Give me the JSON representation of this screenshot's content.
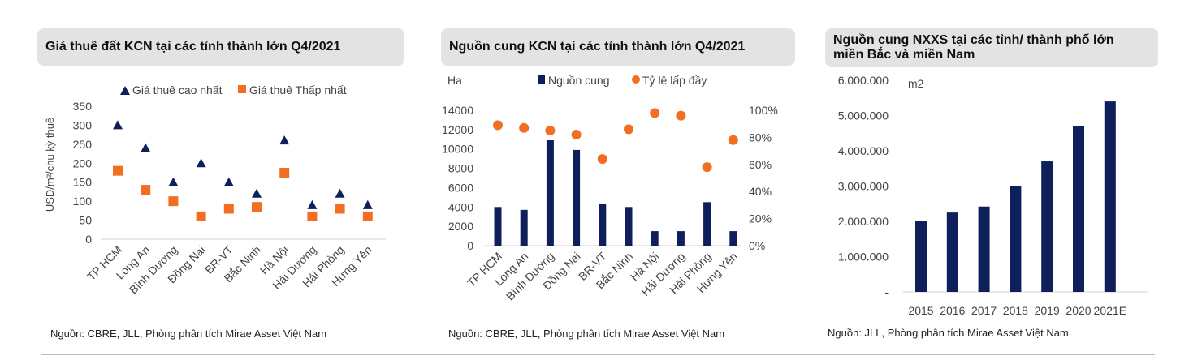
{
  "colors": {
    "navy": "#0f1f5c",
    "orange": "#f26f21",
    "title_bg": "#e3e3e3",
    "rule": "#c8b9a6"
  },
  "panels": {
    "p1": {
      "title": "Giá thuê đất KCN tại các tỉnh thành lớn Q4/2021",
      "source": "Nguồn: CBRE, JLL, Phòng phân tích Mirae Asset Việt Nam"
    },
    "p2": {
      "title": "Nguồn cung KCN tại các tỉnh thành lớn Q4/2021",
      "source": "Nguồn: CBRE, JLL, Phòng phân tích Mirae Asset Việt Nam"
    },
    "p3": {
      "title_line1": "Nguồn cung NXXS tại các tỉnh/ thành phố lớn",
      "title_line2": "miền Bắc và miền Nam",
      "source": "Nguồn: JLL, Phòng phân tích Mirae Asset Việt Nam"
    }
  },
  "chart_data": [
    {
      "type": "scatter",
      "title": "Giá thuê đất KCN tại các tỉnh thành lớn Q4/2021",
      "ylabel": "USD/m²/chu kỳ thuê",
      "ylim": [
        0,
        350
      ],
      "yticks": [
        "0",
        "50",
        "100",
        "150",
        "200",
        "250",
        "300",
        "350"
      ],
      "categories": [
        "TP HCM",
        "Long An",
        "Bình Dương",
        "Đồng Nai",
        "BR-VT",
        "Bắc Ninh",
        "Hà Nội",
        "Hải Dương",
        "Hải Phòng",
        "Hưng Yên"
      ],
      "series": [
        {
          "name": "Giá thuê cao nhất",
          "marker": "triangle",
          "values": [
            300,
            240,
            150,
            200,
            150,
            120,
            260,
            90,
            120,
            90
          ]
        },
        {
          "name": "Giá thuê Thấp nhất",
          "marker": "square",
          "values": [
            180,
            130,
            100,
            60,
            80,
            85,
            175,
            60,
            80,
            60
          ]
        }
      ],
      "legend": "top"
    },
    {
      "type": "bar",
      "title": "Nguồn cung KCN tại các tỉnh thành lớn Q4/2021",
      "ylabel": "Ha",
      "ylim": [
        0,
        14000
      ],
      "yticks": [
        "0",
        "2000",
        "4000",
        "6000",
        "8000",
        "10000",
        "12000",
        "14000"
      ],
      "y2lim": [
        0,
        1
      ],
      "y2ticks": [
        "0%",
        "20%",
        "40%",
        "60%",
        "80%",
        "100%"
      ],
      "categories": [
        "TP HCM",
        "Long An",
        "Bình Dương",
        "Đồng Nai",
        "BR-VT",
        "Bắc Ninh",
        "Hà Nội",
        "Hải Dương",
        "Hải Phòng",
        "Hưng Yên"
      ],
      "series": [
        {
          "name": "Nguồn cung",
          "type": "bar",
          "axis": "left",
          "values": [
            4000,
            3700,
            10900,
            9900,
            4300,
            4000,
            1500,
            1500,
            4500,
            1500
          ]
        },
        {
          "name": "Tỷ lệ lấp đầy",
          "type": "dot",
          "axis": "right",
          "values": [
            0.89,
            0.87,
            0.85,
            0.82,
            0.64,
            0.86,
            0.98,
            0.96,
            0.58,
            0.78
          ]
        }
      ],
      "legend": "top"
    },
    {
      "type": "bar",
      "title": "Nguồn cung NXXS tại các tỉnh/ thành phố lớn miền Bắc và miền Nam",
      "ylabel": "m2",
      "ylim": [
        0,
        6000000
      ],
      "yticks": [
        "-",
        "1.000.000",
        "2.000.000",
        "3.000.000",
        "4.000.000",
        "5.000.000",
        "6.000.000"
      ],
      "categories": [
        "2015",
        "2016",
        "2017",
        "2018",
        "2019",
        "2020",
        "2021E"
      ],
      "values": [
        2000000,
        2250000,
        2420000,
        3000000,
        3700000,
        4700000,
        5400000
      ]
    }
  ]
}
